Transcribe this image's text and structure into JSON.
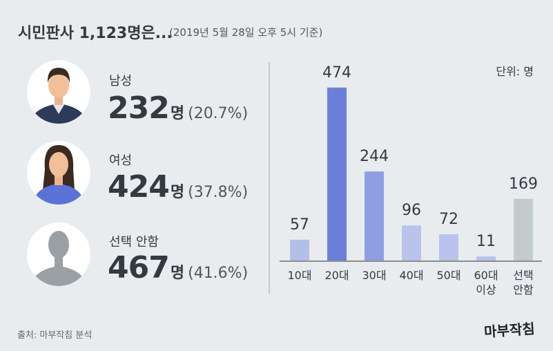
{
  "chart_data": {
    "type": "bar",
    "title": "시민판사 1,123명은...",
    "subtitle": "(2019년 5월 28일 오후 5시 기준)",
    "unit_note": "단위: 명",
    "categories": [
      "10대",
      "20대",
      "30대",
      "40대",
      "50대",
      "60대 이상",
      "선택 안함"
    ],
    "values": [
      57,
      474,
      244,
      96,
      72,
      11,
      169
    ],
    "colors": [
      "#b4bfe8",
      "#6b7fd9",
      "#8e9ee2",
      "#b9c3ec",
      "#b9c3ec",
      "#b9c3ec",
      "#c4cbcd"
    ],
    "ylim": [
      0,
      500
    ]
  },
  "gender": [
    {
      "label": "남성",
      "count": 232,
      "unit": "명",
      "share": "(20.7%)"
    },
    {
      "label": "여성",
      "count": 424,
      "unit": "명",
      "share": "(37.8%)"
    },
    {
      "label": "선택 안함",
      "count": 467,
      "unit": "명",
      "share": "(41.6%)"
    }
  ],
  "source": "출처: 마부작침 분석",
  "logo": "마부작침"
}
